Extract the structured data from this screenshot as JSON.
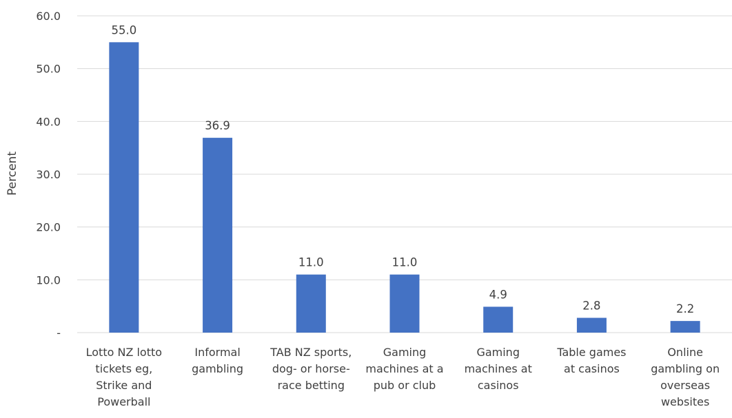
{
  "chart_data": {
    "type": "bar",
    "title": "",
    "xlabel": "",
    "ylabel": "Percent",
    "ylim": [
      0,
      60
    ],
    "yticks": [
      0,
      10,
      20,
      30,
      40,
      50,
      60
    ],
    "ytick_labels": [
      "-",
      "10.0",
      "20.0",
      "30.0",
      "40.0",
      "50.0",
      "60.0"
    ],
    "grid": true,
    "legend": "none",
    "bar_color": "#4472c4",
    "categories": [
      "Lotto NZ lotto tickets eg, Strike and Powerball",
      "Informal gambling",
      "TAB NZ sports, dog- or horse-race betting",
      "Gaming machines at a pub or club",
      "Gaming machines at casinos",
      "Table games at casinos",
      "Online gambling on overseas websites"
    ],
    "category_lines": [
      [
        "Lotto NZ lotto",
        "tickets eg,",
        "Strike and",
        "Powerball"
      ],
      [
        "Informal",
        "gambling"
      ],
      [
        "TAB NZ sports,",
        "dog- or horse-",
        "race betting"
      ],
      [
        "Gaming",
        "machines at a",
        "pub or club"
      ],
      [
        "Gaming",
        "machines at",
        "casinos"
      ],
      [
        "Table games",
        "at casinos"
      ],
      [
        "Online",
        "gambling on",
        "overseas",
        "websites"
      ]
    ],
    "values": [
      55.0,
      36.9,
      11.0,
      11.0,
      4.9,
      2.8,
      2.2
    ],
    "data_labels": [
      "55.0",
      "36.9",
      "11.0",
      "11.0",
      "4.9",
      "2.8",
      "2.2"
    ]
  }
}
